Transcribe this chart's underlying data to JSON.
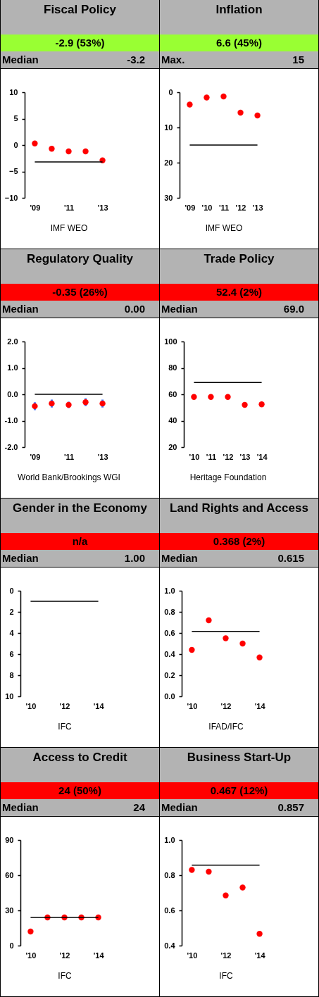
{
  "chart_data": [
    {
      "type": "scatter",
      "title": "Fiscal Policy",
      "subtitle": "-2.9 (53%)",
      "color": "#99ff33",
      "annotations": [
        "Median",
        "-3.2"
      ],
      "xlabel": "IMF WEO",
      "categories": [
        "'09",
        null,
        "'11",
        null,
        "'13"
      ],
      "marker": "circle",
      "series": [
        {
          "color": "#ff0000",
          "values": [
            0.3,
            -0.7,
            -1.2,
            -1.2,
            -2.9
          ]
        }
      ],
      "ylim": [
        -10,
        10
      ],
      "yticks": [
        -10,
        -5,
        0,
        5,
        10
      ],
      "ref_lines": [
        {
          "axis": "y",
          "value": -3.2,
          "color": "#000000"
        }
      ]
    },
    {
      "type": "scatter",
      "title": "Inflation",
      "subtitle": "6.6 (45%)",
      "color": "#99ff33",
      "annotations": [
        "Max.",
        "15"
      ],
      "xlabel": "IMF WEO",
      "categories": [
        "'09",
        "'10",
        "'11",
        "'12",
        "'13"
      ],
      "marker": "circle",
      "series": [
        {
          "color": "#ff0000",
          "values": [
            3.5,
            1.5,
            1.2,
            5.8,
            6.6
          ]
        }
      ],
      "ylim": [
        30,
        0
      ],
      "yticks": [
        0,
        10,
        20,
        30
      ],
      "ref_lines": [
        {
          "axis": "y",
          "value": 15,
          "color": "#000000"
        }
      ]
    },
    {
      "type": "scatter",
      "title": "Regulatory Quality",
      "subtitle": "-0.35 (26%)",
      "color": "#ff0000",
      "annotations": [
        "Median",
        "0.00"
      ],
      "xlabel": "World Bank/Brookings WGI",
      "categories": [
        "'09",
        null,
        "'11",
        null,
        "'13"
      ],
      "marker": "circle",
      "series": [
        {
          "color": "#ff0000",
          "values": [
            -0.45,
            -0.35,
            -0.4,
            -0.3,
            -0.35
          ],
          "errors": [
            0.15,
            0.15,
            0.12,
            0.15,
            0.15
          ]
        }
      ],
      "ylim": [
        -2,
        2
      ],
      "yticks": [
        {
          "value": -2,
          "label": "-2.0"
        },
        {
          "value": -1,
          "label": "-1.0"
        },
        {
          "value": 0,
          "label": "0.0"
        },
        {
          "value": 1,
          "label": "1.0"
        },
        {
          "value": 2,
          "label": "2.0"
        }
      ],
      "ref_lines": [
        {
          "axis": "y",
          "value": 0,
          "color": "#000000"
        }
      ]
    },
    {
      "type": "scatter",
      "title": "Trade Policy",
      "subtitle": "52.4 (2%)",
      "color": "#ff0000",
      "annotations": [
        "Median",
        "69.0"
      ],
      "xlabel": "Heritage Foundation",
      "categories": [
        "'10",
        "'11",
        "'12",
        "'13",
        "'14"
      ],
      "marker": "circle",
      "series": [
        {
          "color": "#ff0000",
          "values": [
            58,
            58,
            58,
            52,
            52.4
          ]
        }
      ],
      "ylim": [
        20,
        100
      ],
      "yticks": [
        20,
        40,
        60,
        80,
        100
      ],
      "ref_lines": [
        {
          "axis": "y",
          "value": 69,
          "color": "#000000"
        }
      ]
    },
    {
      "type": "scatter",
      "title": "Gender in the Economy",
      "subtitle": "n/a",
      "color": "#ff0000",
      "annotations": [
        "Median",
        "1.00"
      ],
      "xlabel": "IFC",
      "categories": [
        "'10",
        null,
        "'12",
        null,
        "'14"
      ],
      "marker": "circle",
      "series": [
        {
          "color": "#ff0000",
          "values": [
            null,
            null,
            null,
            null,
            null
          ]
        }
      ],
      "ylim": [
        10,
        0
      ],
      "yticks": [
        0,
        2,
        4,
        6,
        8,
        10
      ],
      "ref_lines": [
        {
          "axis": "y",
          "value": 1,
          "color": "#000000"
        }
      ]
    },
    {
      "type": "scatter",
      "title": "Land Rights and Access",
      "subtitle": "0.368 (2%)",
      "color": "#ff0000",
      "annotations": [
        "Median",
        "0.615"
      ],
      "xlabel": "IFAD/IFC",
      "categories": [
        "'10",
        null,
        "'12",
        null,
        "'14"
      ],
      "marker": "circle",
      "series": [
        {
          "color": "#ff0000",
          "values": [
            0.44,
            0.72,
            0.55,
            0.5,
            0.368
          ]
        }
      ],
      "ylim": [
        0,
        1
      ],
      "yticks": [
        {
          "value": 0,
          "label": "0.0"
        },
        {
          "value": 0.2,
          "label": "0.2"
        },
        {
          "value": 0.4,
          "label": "0.4"
        },
        {
          "value": 0.6,
          "label": "0.6"
        },
        {
          "value": 0.8,
          "label": "0.8"
        },
        {
          "value": 1,
          "label": "1.0"
        }
      ],
      "ref_lines": [
        {
          "axis": "y",
          "value": 0.615,
          "color": "#000000"
        }
      ]
    },
    {
      "type": "scatter",
      "title": "Access to Credit",
      "subtitle": "24 (50%)",
      "color": "#ff0000",
      "annotations": [
        "Median",
        "24"
      ],
      "xlabel": "IFC",
      "categories": [
        "'10",
        null,
        "'12",
        null,
        "'14"
      ],
      "marker": "circle",
      "series": [
        {
          "color": "#ff0000",
          "values": [
            12,
            24,
            24,
            24,
            24
          ]
        }
      ],
      "ylim": [
        0,
        90
      ],
      "yticks": [
        0,
        30,
        60,
        90
      ],
      "ref_lines": [
        {
          "axis": "y",
          "value": 24,
          "color": "#000000"
        }
      ]
    },
    {
      "type": "scatter",
      "title": "Business Start-Up",
      "subtitle": "0.467 (12%)",
      "color": "#ff0000",
      "annotations": [
        "Median",
        "0.857"
      ],
      "xlabel": "IFC",
      "categories": [
        "'10",
        null,
        "'12",
        null,
        "'14"
      ],
      "marker": "circle",
      "series": [
        {
          "color": "#ff0000",
          "values": [
            0.83,
            0.82,
            0.685,
            0.73,
            0.467
          ]
        }
      ],
      "ylim": [
        0.4,
        1
      ],
      "yticks": [
        {
          "value": 0.4,
          "label": "0.4"
        },
        {
          "value": 0.6,
          "label": "0.6"
        },
        {
          "value": 0.8,
          "label": "0.8"
        },
        {
          "value": 1,
          "label": "1.0"
        }
      ],
      "ref_lines": [
        {
          "axis": "y",
          "value": 0.857,
          "color": "#000000"
        }
      ]
    }
  ]
}
